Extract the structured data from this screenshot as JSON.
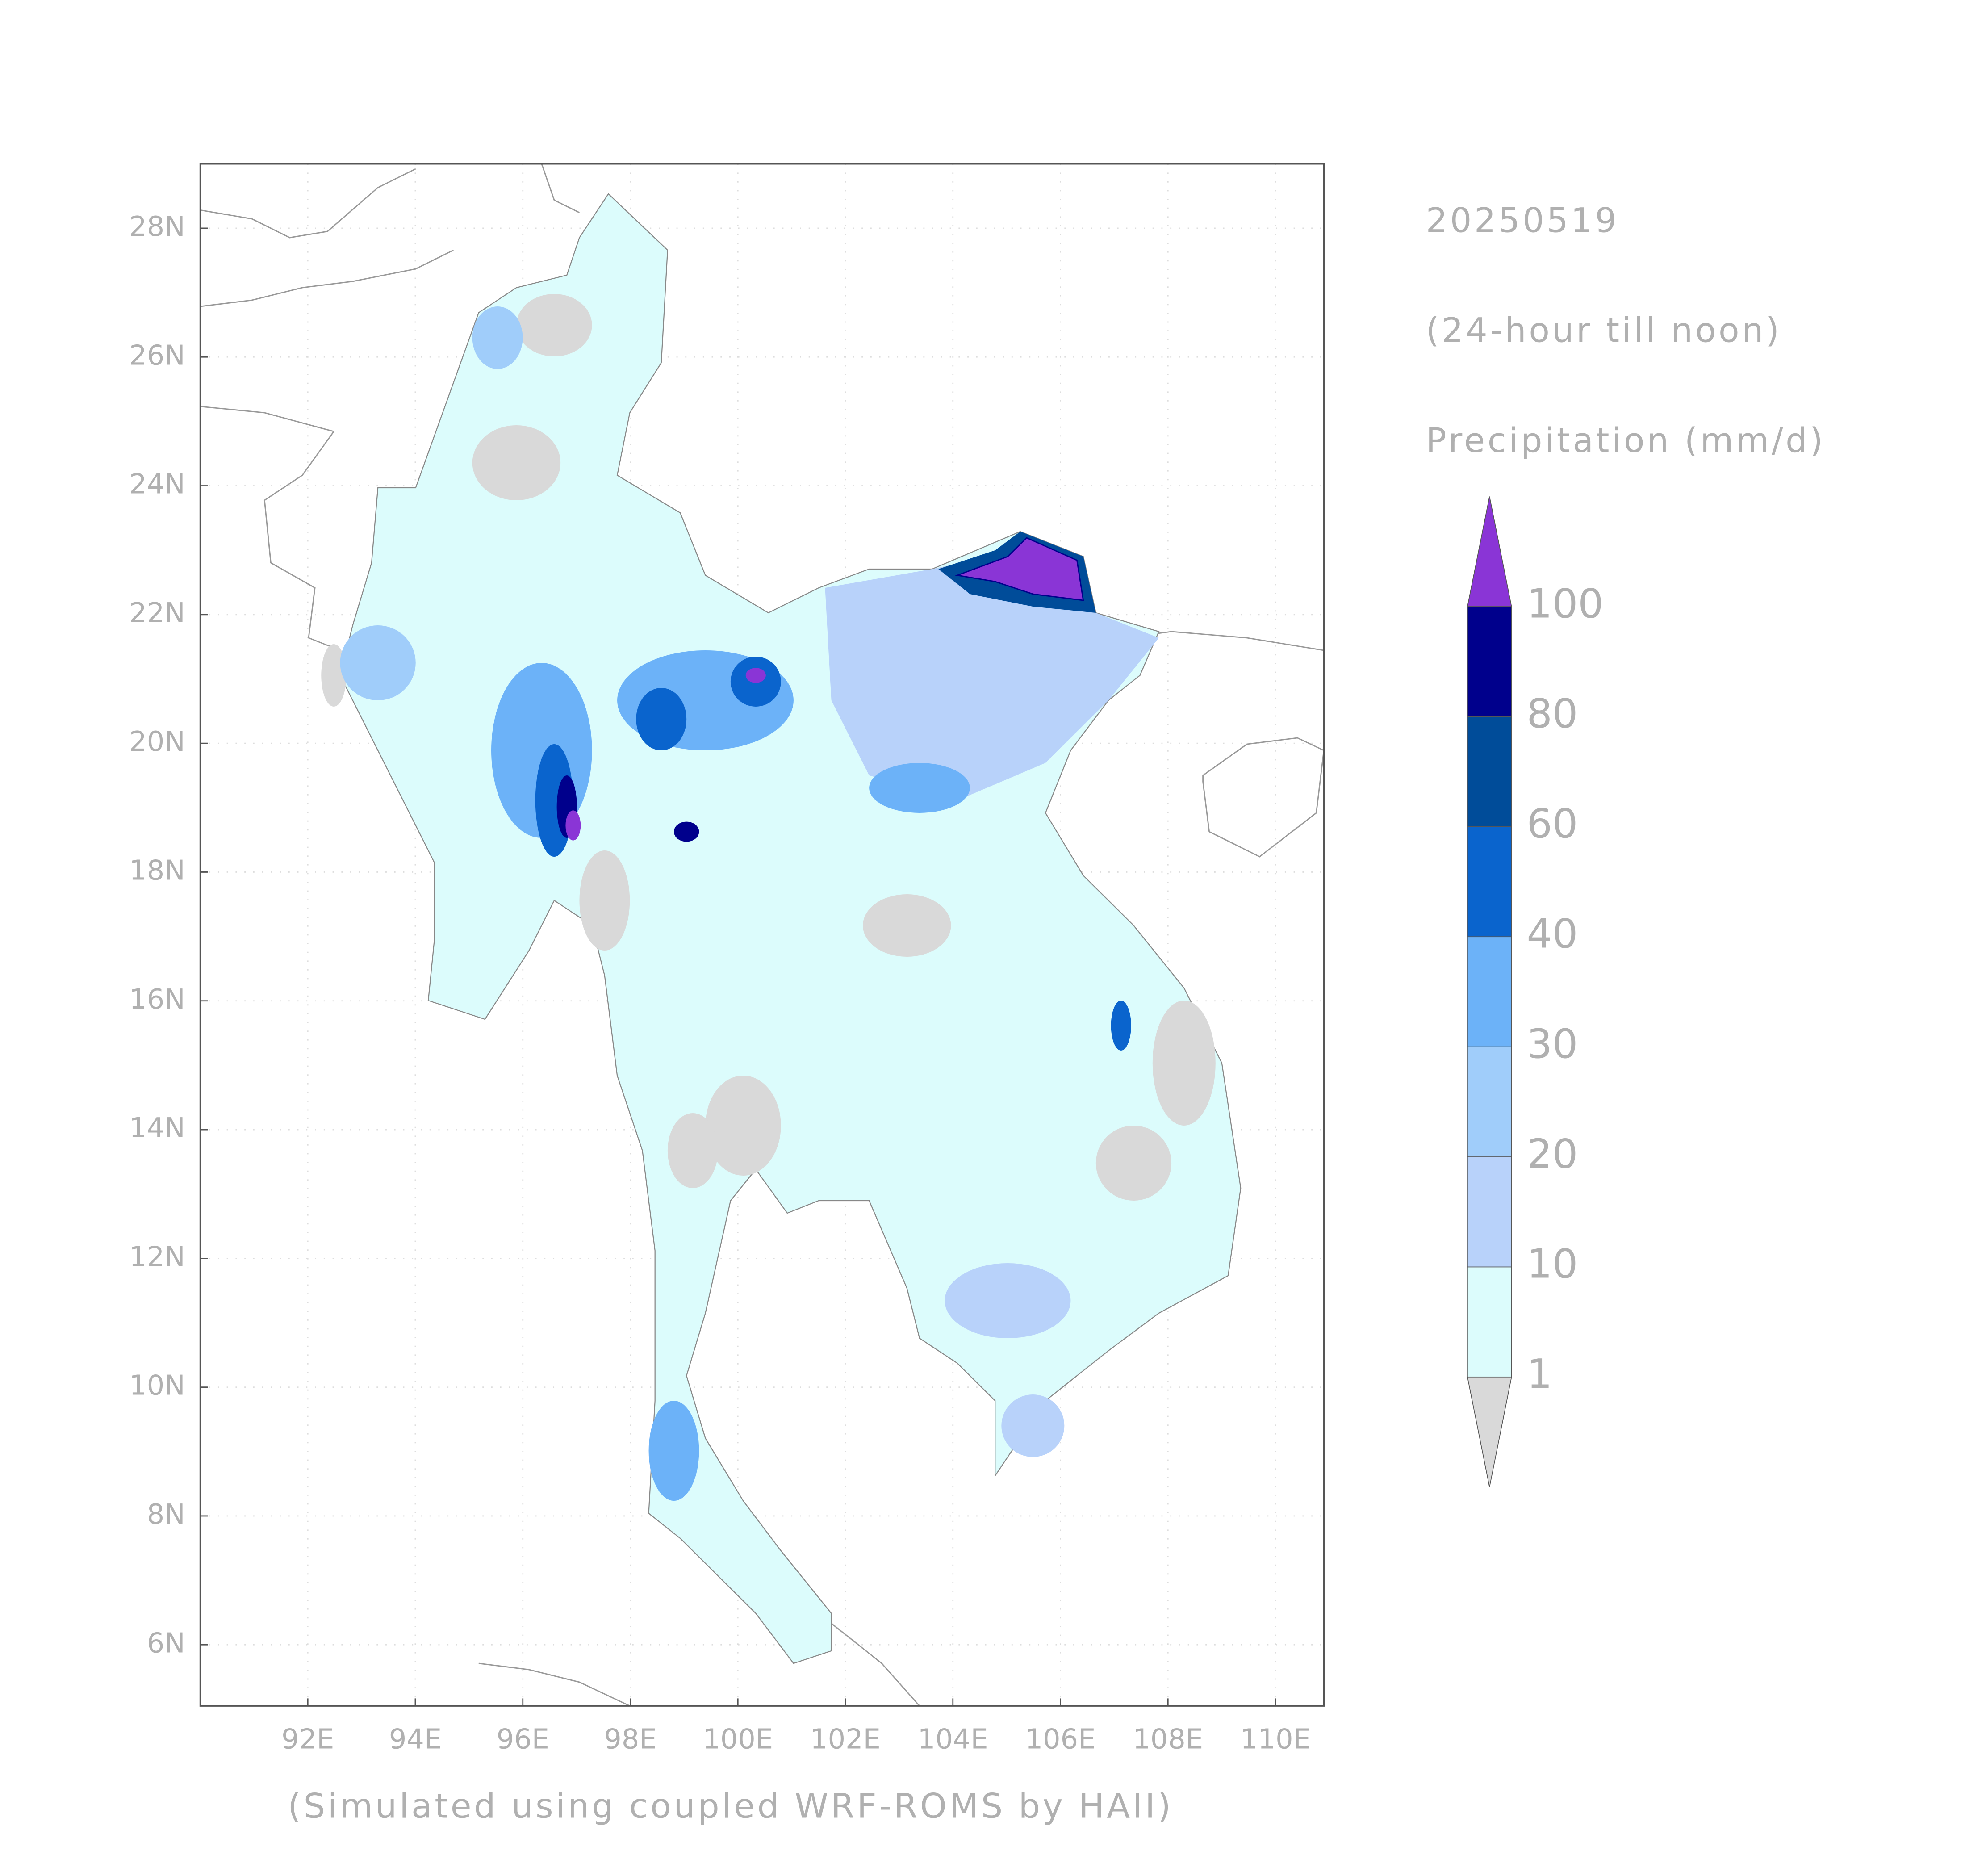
{
  "map": {
    "type": "precipitation-map",
    "date": "20250519",
    "period": "(24-hour till noon)",
    "variable": "Precipitation (mm/d)",
    "footer": "(Simulated using coupled WRF-ROMS by HAII)",
    "xlim": [
      90,
      110.9
    ],
    "ylim": [
      5.05,
      29
    ],
    "xticks": [
      {
        "value": 92,
        "label": "92E"
      },
      {
        "value": 94,
        "label": "94E"
      },
      {
        "value": 96,
        "label": "96E"
      },
      {
        "value": 98,
        "label": "98E"
      },
      {
        "value": 100,
        "label": "100E"
      },
      {
        "value": 102,
        "label": "102E"
      },
      {
        "value": 104,
        "label": "104E"
      },
      {
        "value": 106,
        "label": "106E"
      },
      {
        "value": 108,
        "label": "108E"
      },
      {
        "value": 110,
        "label": "110E"
      }
    ],
    "yticks": [
      {
        "value": 6,
        "label": "6N"
      },
      {
        "value": 8,
        "label": "8N"
      },
      {
        "value": 10,
        "label": "10N"
      },
      {
        "value": 12,
        "label": "12N"
      },
      {
        "value": 14,
        "label": "14N"
      },
      {
        "value": 16,
        "label": "16N"
      },
      {
        "value": 18,
        "label": "18N"
      },
      {
        "value": 20,
        "label": "20N"
      },
      {
        "value": 22,
        "label": "22N"
      },
      {
        "value": 24,
        "label": "24N"
      },
      {
        "value": 26,
        "label": "26N"
      },
      {
        "value": 28,
        "label": "28N"
      }
    ],
    "grid": true,
    "colorbar": {
      "levels": [
        1,
        10,
        20,
        30,
        40,
        60,
        80,
        100
      ],
      "colors": [
        "#dcfcfc",
        "#b8d2fa",
        "#a0cdfa",
        "#6cb2f8",
        "#0a64cd",
        "#004c99",
        "#00008c"
      ],
      "under_color": "#d9d9d9",
      "over_color": "#8a35d6"
    }
  }
}
